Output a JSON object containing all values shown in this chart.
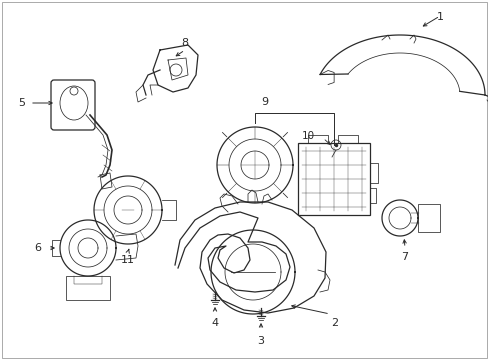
{
  "bg_color": "#ffffff",
  "line_color": "#2a2a2a",
  "label_color": "#000000",
  "figsize": [
    4.89,
    3.6
  ],
  "dpi": 100,
  "font_size": 7.5
}
